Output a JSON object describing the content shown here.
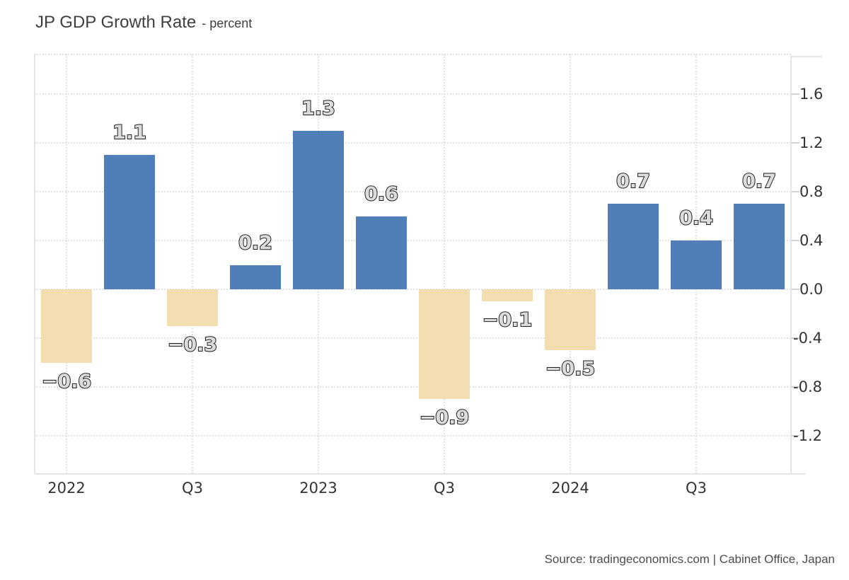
{
  "title": {
    "main": "JP GDP Growth Rate",
    "subtitle": "- percent"
  },
  "source_text": "Source: tradingeconomics.com | Cabinet Office, Japan",
  "colors": {
    "positive_bar": "#4f7eb9",
    "negative_bar": "#f3deb1",
    "grid": "#e2e2e2",
    "axis_border": "#e5e5e5",
    "label_fill": "#dcdcdc",
    "label_outline": "#1f1f1f",
    "axis_text": "#333333"
  },
  "chart_data": {
    "type": "bar",
    "title": "JP GDP Growth Rate",
    "ylabel": "percent",
    "values": [
      -0.6,
      1.1,
      -0.3,
      0.2,
      1.3,
      0.6,
      -0.9,
      -0.1,
      -0.5,
      0.7,
      0.4,
      0.7
    ],
    "point_labels": [
      "−0.6",
      "1.1",
      "−0.3",
      "0.2",
      "1.3",
      "0.6",
      "−0.9",
      "−0.1",
      "−0.5",
      "0.7",
      "0.4",
      "0.7"
    ],
    "categories": [
      "2022",
      "",
      "Q3",
      "",
      "2023",
      "",
      "Q3",
      "",
      "2024",
      "",
      "Q3",
      ""
    ],
    "x_tick_labels": [
      "2022",
      "Q3",
      "2023",
      "Q3",
      "2024",
      "Q3"
    ],
    "y_ticks": [
      1.6,
      1.2,
      0.8,
      0.4,
      0.0,
      -0.4,
      -0.8,
      -1.2
    ],
    "y_tick_labels": [
      "1.6",
      "1.2",
      "0.8",
      "0.4",
      "0.0",
      "-0.4",
      "-0.8",
      "-1.2"
    ],
    "ylim": [
      -1.5,
      1.93
    ],
    "grid": true,
    "legend": "none"
  }
}
